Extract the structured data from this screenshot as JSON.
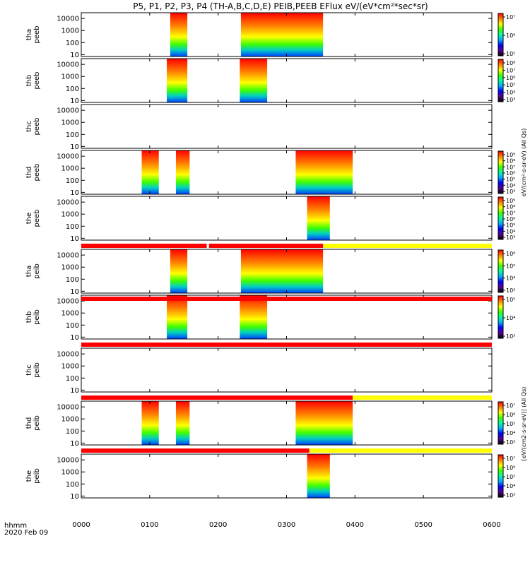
{
  "title": "P5, P1, P2, P3, P4 (TH-A,B,C,D,E) PEIB,PEEB EFlux eV/(eV*cm²*sec*sr)",
  "colorbar_labels": [
    "eV/(cm²-s-sr-eV) (All Qs)",
    "[eV/(cm2-s-sr-eV)] (All Qs)"
  ],
  "time_axis": {
    "ticks": [
      "0000",
      "0100",
      "0200",
      "0300",
      "0400",
      "0500",
      "0600"
    ],
    "label_line1": "hhmm",
    "label_line2": "2020 Feb 09"
  },
  "energy_ticks": [
    "10000",
    "1000",
    "100",
    "10"
  ],
  "colors": {
    "scale": [
      "#000000",
      "#5a0090",
      "#0000ff",
      "#00b0ff",
      "#00ffa0",
      "#40ff00",
      "#ffff00",
      "#ff8000",
      "#ff0000"
    ],
    "flag_red": "#ff0000",
    "flag_yellow": "#ffff00"
  },
  "chart_data": {
    "type": "heatmap",
    "x_unit": "hhmm",
    "xlim": [
      "0000",
      "0600"
    ],
    "y_scale": "log",
    "ylim_eV": [
      7,
      30000
    ],
    "panels": [
      {
        "id": "tha_peeb",
        "probe": "tha",
        "species": "peeb",
        "blocks": [
          {
            "start": "0118",
            "end": "0133"
          },
          {
            "start": "0220",
            "end": "0292"
          }
        ],
        "colorbar_ticks": [
          "10⁷",
          "10⁶",
          "10⁵"
        ]
      },
      {
        "id": "thb_peeb",
        "probe": "thb",
        "species": "peeb",
        "blocks": [
          {
            "start": "0075",
            "end": "0093"
          },
          {
            "start": "0219",
            "end": "0243"
          }
        ],
        "colorbar_ticks": [
          "10⁸",
          "10⁷",
          "10⁶",
          "10⁵",
          "10⁴",
          "10³"
        ]
      },
      {
        "id": "thc_peeb",
        "probe": "thc",
        "species": "peeb",
        "blocks": [],
        "colorbar_ticks": []
      },
      {
        "id": "thd_peeb",
        "probe": "thd",
        "species": "peeb",
        "blocks": [
          {
            "start": "0053",
            "end": "0068"
          },
          {
            "start": "0083",
            "end": "0135"
          },
          {
            "start": "0308",
            "end": "0358"
          }
        ],
        "colorbar_ticks": [
          "10⁹",
          "10⁸",
          "10⁷",
          "10⁶",
          "10⁵",
          "10⁴",
          "10³"
        ]
      },
      {
        "id": "the_peeb",
        "probe": "the",
        "species": "peeb",
        "blocks": [
          {
            "start": "0278",
            "end": "0298"
          }
        ],
        "colorbar_ticks": [
          "10⁹",
          "10⁸",
          "10⁷",
          "10⁶",
          "10⁵",
          "10⁴",
          "10³"
        ]
      },
      {
        "id": "tha_peib",
        "probe": "tha",
        "species": "peib",
        "blocks": [
          {
            "start": "0118",
            "end": "0133"
          },
          {
            "start": "0220",
            "end": "0292"
          }
        ],
        "colorbar_ticks": [
          "10⁶",
          "10⁵",
          "10⁴",
          "10³"
        ]
      },
      {
        "id": "thb_peib",
        "probe": "thb",
        "species": "peib",
        "blocks": [
          {
            "start": "0075",
            "end": "0093"
          },
          {
            "start": "0219",
            "end": "0243"
          }
        ],
        "colorbar_ticks": [
          "10⁵",
          "10⁴",
          "10³"
        ]
      },
      {
        "id": "thc_peib",
        "probe": "thc",
        "species": "peib",
        "blocks": [],
        "colorbar_ticks": []
      },
      {
        "id": "thd_peib",
        "probe": "thd",
        "species": "peib",
        "blocks": [
          {
            "start": "0053",
            "end": "0068"
          },
          {
            "start": "0083",
            "end": "0135"
          },
          {
            "start": "0308",
            "end": "0358"
          }
        ],
        "colorbar_ticks": [
          "10⁷",
          "10⁶",
          "10⁵",
          "10⁴",
          "10³"
        ]
      },
      {
        "id": "the_peib",
        "probe": "the",
        "species": "peib",
        "blocks": [
          {
            "start": "0278",
            "end": "0298"
          }
        ],
        "colorbar_ticks": [
          "10⁷",
          "10⁶",
          "10⁵",
          "10⁴",
          "10³"
        ]
      }
    ],
    "flag_bars": [
      {
        "after_panel": "the_peeb",
        "segments": [
          {
            "start": "0000",
            "end": "0150",
            "color": "red"
          },
          {
            "start": "0152",
            "end": "0292",
            "color": "red"
          },
          {
            "start": "0292",
            "end": "0600",
            "color": "yellow"
          }
        ]
      },
      {
        "after_panel": "tha_peib",
        "segments": [
          {
            "start": "0000",
            "end": "0600",
            "color": "red"
          }
        ]
      },
      {
        "after_panel": "thb_peib",
        "segments": [
          {
            "start": "0000",
            "end": "0600",
            "color": "red"
          }
        ]
      },
      {
        "after_panel": "thc_peib",
        "segments": [
          {
            "start": "0000",
            "end": "0358",
            "color": "red"
          },
          {
            "start": "0358",
            "end": "0600",
            "color": "yellow"
          }
        ]
      },
      {
        "after_panel": "thd_peib",
        "segments": [
          {
            "start": "0000",
            "end": "0280",
            "color": "red"
          },
          {
            "start": "0280",
            "end": "0600",
            "color": "yellow"
          }
        ]
      }
    ]
  }
}
